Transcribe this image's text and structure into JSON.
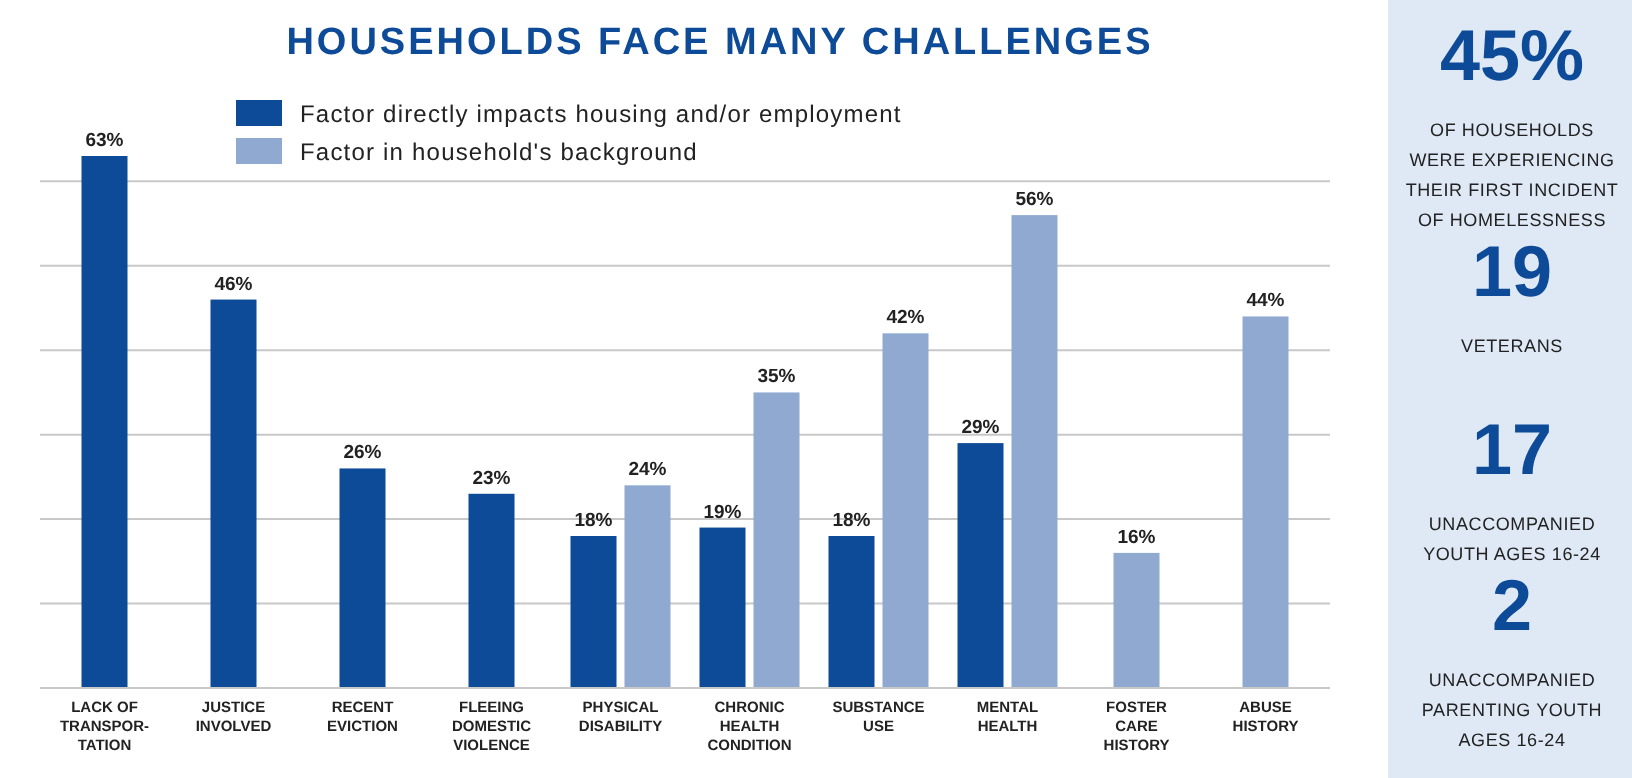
{
  "chart_data": [
    {
      "type": "bar",
      "title": "HOUSEHOLDS FACE MANY CHALLENGES",
      "categories": [
        "LACK OF\nTRANSPOR-\nTATION",
        "JUSTICE\nINVOLVED",
        "RECENT\nEVICTION",
        "FLEEING\nDOMESTIC\nVIOLENCE",
        "PHYSICAL\nDISABILITY",
        "CHRONIC\nHEALTH\nCONDITION",
        "SUBSTANCE\nUSE",
        "MENTAL\nHEALTH",
        "FOSTER\nCARE\nHISTORY",
        "ABUSE\nHISTORY"
      ],
      "series": [
        {
          "name": "Factor directly impacts housing and/or employment",
          "color": "#0d4a97",
          "values": [
            63,
            46,
            26,
            23,
            18,
            19,
            18,
            29,
            null,
            null
          ],
          "value_labels": [
            "63%",
            "46%",
            "26%",
            "23%",
            "18%",
            "19%",
            "18%",
            "29%",
            null,
            null
          ]
        },
        {
          "name": "Factor in household's background",
          "color": "#8fa9d0",
          "values": [
            null,
            null,
            null,
            null,
            24,
            35,
            42,
            56,
            16,
            44
          ],
          "value_labels": [
            null,
            null,
            null,
            null,
            "24%",
            "35%",
            "42%",
            "56%",
            "16%",
            "44%"
          ]
        }
      ],
      "ylim": [
        0,
        63
      ],
      "yticks": [
        {
          "value": 10,
          "label": null
        },
        {
          "value": 20,
          "label": null
        },
        {
          "value": 30,
          "label": null
        },
        {
          "value": 40,
          "label": null
        },
        {
          "value": 50,
          "label": null
        },
        {
          "value": 60,
          "label": null
        }
      ],
      "tick_labels": "x",
      "grid": "y",
      "legend": "top"
    },
    {
      "type": "other",
      "annotations": [
        "45%",
        "OF HOUSEHOLDS\nWERE EXPERIENCING\nTHEIR FIRST INCIDENT\nOF HOMELESSNESS",
        "19",
        "VETERANS",
        "17",
        "UNACCOMPANIED\nYOUTH AGES 16-24",
        "2",
        "UNACCOMPANIED\nPARENTING YOUTH\nAGES 16-24"
      ]
    }
  ]
}
